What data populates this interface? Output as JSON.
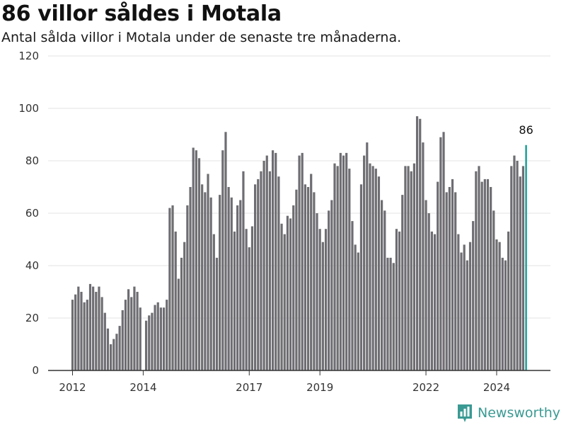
{
  "header": {
    "title": "86 villor såldes i Motala",
    "subtitle": "Antal sålda villor i Motala under de senaste tre månaderna."
  },
  "brand": {
    "name": "Newsworthy",
    "icon": "bar-chart-logo-icon"
  },
  "colors": {
    "bar": "#6e6d72",
    "highlight": "#22a39a",
    "grid": "#e3e3e3",
    "axis": "#333333",
    "brand": "#3a9a93"
  },
  "chart_data": {
    "type": "bar",
    "title": "86 villor såldes i Motala",
    "subtitle": "Antal sålda villor i Motala under de senaste tre månaderna.",
    "xlabel": "",
    "ylabel": "",
    "ylim": [
      0,
      120
    ],
    "yticks": [
      "0",
      "20",
      "40",
      "60",
      "80",
      "100",
      "120"
    ],
    "xticks": [
      "2012",
      "2014",
      "2017",
      "2019",
      "2022",
      "2024"
    ],
    "x_start": "2012-01",
    "frequency": "monthly",
    "grid": true,
    "highlight_label": "86",
    "values": [
      27,
      29,
      32,
      30,
      26,
      27,
      33,
      32,
      30,
      32,
      28,
      22,
      16,
      10,
      12,
      14,
      17,
      23,
      27,
      31,
      28,
      32,
      30,
      24,
      null,
      19,
      21,
      22,
      25,
      26,
      24,
      24,
      27,
      62,
      63,
      53,
      35,
      43,
      49,
      63,
      70,
      85,
      84,
      81,
      71,
      68,
      75,
      66,
      52,
      43,
      67,
      84,
      91,
      70,
      66,
      53,
      63,
      65,
      76,
      54,
      47,
      55,
      71,
      73,
      76,
      80,
      82,
      76,
      84,
      83,
      74,
      56,
      52,
      59,
      58,
      63,
      69,
      82,
      83,
      71,
      70,
      75,
      68,
      60,
      54,
      49,
      54,
      61,
      65,
      79,
      78,
      83,
      82,
      83,
      77,
      57,
      48,
      45,
      71,
      82,
      87,
      79,
      78,
      77,
      74,
      65,
      61,
      43,
      43,
      41,
      54,
      53,
      67,
      78,
      78,
      76,
      79,
      97,
      96,
      87,
      65,
      60,
      53,
      52,
      72,
      89,
      91,
      68,
      70,
      73,
      68,
      52,
      45,
      48,
      42,
      49,
      57,
      76,
      78,
      72,
      73,
      73,
      70,
      61,
      50,
      49,
      43,
      42,
      53,
      78,
      82,
      80,
      74,
      78,
      86
    ]
  }
}
